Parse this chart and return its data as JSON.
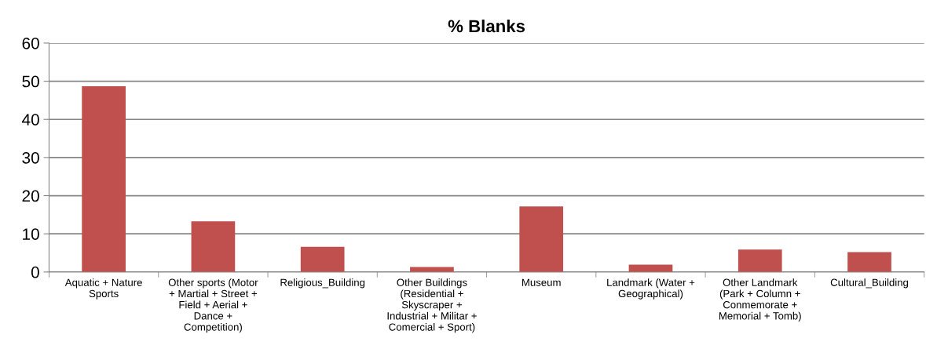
{
  "chart_data": {
    "type": "bar",
    "title": "% Blanks",
    "categories": [
      "Aquatic + Nature\nSports",
      "Other sports (Motor\n+ Martial + Street +\nField + Aerial +\nDance +\nCompetition)",
      "Religious_Building",
      "Other Buildings\n(Residential +\nSkyscraper +\nIndustrial + Militar +\nComercial + Sport)",
      "Museum",
      "Landmark (Water +\nGeographical)",
      "Other Landmark\n(Park + Column +\nConmemorate +\nMemorial + Tomb)",
      "Cultural_Building"
    ],
    "values": [
      48.7,
      13.3,
      6.6,
      1.3,
      17.2,
      1.9,
      5.9,
      5.2
    ],
    "color": "#c0504d",
    "ylim": [
      0,
      60
    ],
    "yticks": [
      0,
      10,
      20,
      30,
      40,
      50,
      60
    ],
    "grid": "y",
    "legend": false
  }
}
